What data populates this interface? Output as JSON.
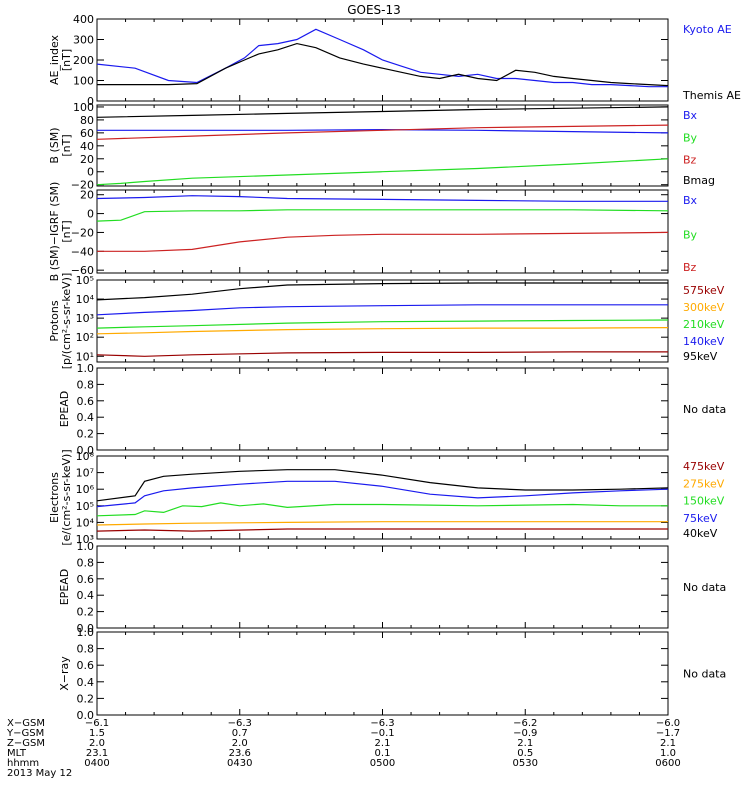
{
  "title": "GOES-13",
  "colors": {
    "black": "#000000",
    "blue": "#1a1aee",
    "green": "#22dd22",
    "red": "#cc2222",
    "orange": "#ffaa00",
    "maroon": "#990000"
  },
  "chart_data": [
    {
      "id": "ae",
      "type": "line",
      "ylabel": [
        "AE_index",
        "[nT]"
      ],
      "ylim": [
        0,
        400
      ],
      "yticks": [
        {
          "v": 0,
          "t": "0"
        },
        {
          "v": 100,
          "t": "100"
        },
        {
          "v": 200,
          "t": "200"
        },
        {
          "v": 300,
          "t": "300"
        },
        {
          "v": 400,
          "t": "400"
        }
      ],
      "series": [
        {
          "name": "Kyoto AE",
          "color": "#1a1aee",
          "labelY": 110,
          "x": [
            0,
            8,
            15,
            21,
            27,
            31,
            34,
            38,
            42,
            46,
            51,
            56,
            60,
            64,
            68,
            72,
            76,
            80,
            84,
            88,
            92,
            96,
            100,
            104,
            108,
            112,
            116,
            120
          ],
          "y": [
            180,
            160,
            100,
            90,
            160,
            210,
            270,
            280,
            300,
            350,
            300,
            250,
            200,
            170,
            140,
            130,
            120,
            130,
            110,
            110,
            100,
            90,
            90,
            80,
            80,
            75,
            70,
            70
          ]
        },
        {
          "name": "Themis AE",
          "color": "#000000",
          "labelY": 90,
          "x": [
            0,
            8,
            15,
            21,
            27,
            31,
            34,
            38,
            42,
            46,
            51,
            56,
            60,
            64,
            68,
            72,
            76,
            80,
            84,
            88,
            92,
            96,
            100,
            104,
            108,
            112,
            116,
            120
          ],
          "y": [
            80,
            80,
            80,
            85,
            160,
            200,
            230,
            250,
            280,
            260,
            210,
            180,
            160,
            140,
            120,
            110,
            130,
            110,
            100,
            150,
            140,
            120,
            110,
            100,
            90,
            85,
            80,
            75
          ]
        }
      ]
    },
    {
      "id": "bsm",
      "type": "line",
      "ylabel": [
        "B (SM)",
        "[nT]"
      ],
      "ylim": [
        -22,
        103
      ],
      "yticks": [
        {
          "v": -20,
          "t": "−20"
        },
        {
          "v": 0,
          "t": "0"
        },
        {
          "v": 20,
          "t": "20"
        },
        {
          "v": 40,
          "t": "40"
        },
        {
          "v": 60,
          "t": "60"
        },
        {
          "v": 80,
          "t": "80"
        },
        {
          "v": 100,
          "t": "100"
        }
      ],
      "series": [
        {
          "name": "Bx",
          "color": "#1a1aee",
          "labelY": 96,
          "x": [
            0,
            20,
            40,
            60,
            80,
            100,
            120
          ],
          "y": [
            64,
            64,
            64,
            65,
            64,
            62,
            60
          ]
        },
        {
          "name": "By",
          "color": "#22dd22",
          "labelY": 68,
          "x": [
            0,
            5,
            10,
            20,
            40,
            60,
            80,
            100,
            120
          ],
          "y": [
            -20,
            -18,
            -15,
            -10,
            -5,
            0,
            5,
            12,
            20
          ]
        },
        {
          "name": "Bz",
          "color": "#cc2222",
          "labelY": 40,
          "x": [
            0,
            20,
            40,
            60,
            80,
            100,
            120
          ],
          "y": [
            50,
            55,
            60,
            64,
            68,
            70,
            72
          ]
        },
        {
          "name": "Bmag",
          "color": "#000000",
          "labelY": 12,
          "x": [
            0,
            20,
            40,
            60,
            80,
            100,
            120
          ],
          "y": [
            84,
            87,
            90,
            93,
            96,
            98,
            100
          ]
        }
      ]
    },
    {
      "id": "bigrf",
      "type": "line",
      "ylabel": [
        "B (SM)−IGRF (SM)",
        "[nT]"
      ],
      "ylim": [
        -63,
        25
      ],
      "yticks": [
        {
          "v": -60,
          "t": "−60"
        },
        {
          "v": -40,
          "t": "−40"
        },
        {
          "v": -20,
          "t": "−20"
        },
        {
          "v": 0,
          "t": "0"
        },
        {
          "v": 20,
          "t": "20"
        }
      ],
      "series": [
        {
          "name": "Bx",
          "color": "#1a1aee",
          "labelY": 15,
          "x": [
            0,
            10,
            20,
            30,
            40,
            60,
            80,
            100,
            120
          ],
          "y": [
            16,
            17,
            19,
            18,
            16,
            15,
            14,
            13,
            13
          ]
        },
        {
          "name": "By",
          "color": "#22dd22",
          "labelY": -12,
          "x": [
            0,
            5,
            10,
            20,
            30,
            40,
            60,
            80,
            100,
            120
          ],
          "y": [
            -8,
            -7,
            2,
            3,
            3,
            4,
            4,
            4,
            4,
            3
          ]
        },
        {
          "name": "Bz",
          "color": "#cc2222",
          "labelY": -40,
          "x": [
            0,
            10,
            20,
            30,
            40,
            50,
            60,
            80,
            100,
            120
          ],
          "y": [
            -40,
            -40,
            -38,
            -30,
            -25,
            -23,
            -22,
            -22,
            -21,
            -20
          ]
        }
      ]
    },
    {
      "id": "protons",
      "type": "line",
      "log": true,
      "ylabel": [
        "Protons",
        "[p/(cm²-s-sr-keV)]"
      ],
      "ylim": [
        5,
        100000
      ],
      "yticks": [
        {
          "v": 10,
          "t": "10¹"
        },
        {
          "v": 100,
          "t": "10²"
        },
        {
          "v": 1000,
          "t": "10³"
        },
        {
          "v": 10000,
          "t": "10⁴"
        },
        {
          "v": 100000,
          "t": "10⁵"
        }
      ],
      "series": [
        {
          "name": "575keV",
          "color": "#990000",
          "labelY": 5,
          "x": [
            0,
            10,
            20,
            40,
            60,
            80,
            100,
            120
          ],
          "y": [
            12,
            10,
            12,
            15,
            16,
            16,
            17,
            17
          ]
        },
        {
          "name": "300keV",
          "color": "#ffaa00",
          "labelY": 4,
          "x": [
            0,
            10,
            20,
            40,
            60,
            80,
            100,
            120
          ],
          "y": [
            150,
            170,
            200,
            250,
            280,
            300,
            300,
            320
          ]
        },
        {
          "name": "210keV",
          "color": "#22dd22",
          "labelY": 3,
          "x": [
            0,
            10,
            20,
            40,
            60,
            80,
            100,
            120
          ],
          "y": [
            300,
            350,
            400,
            550,
            650,
            700,
            750,
            800
          ]
        },
        {
          "name": "140keV",
          "color": "#1a1aee",
          "labelY": 2,
          "x": [
            0,
            10,
            20,
            30,
            40,
            60,
            80,
            100,
            120
          ],
          "y": [
            1500,
            2000,
            2500,
            3500,
            4000,
            4500,
            5000,
            5000,
            5000
          ]
        },
        {
          "name": "95keV",
          "color": "#000000",
          "labelY": 1,
          "x": [
            0,
            10,
            20,
            30,
            40,
            60,
            80,
            100,
            120
          ],
          "y": [
            9000,
            12000,
            18000,
            35000,
            55000,
            65000,
            70000,
            70000,
            70000
          ]
        }
      ]
    },
    {
      "id": "epead1",
      "type": "line",
      "ylabel": [
        "EPEAD"
      ],
      "ylim": [
        0,
        1
      ],
      "nodata": "No data",
      "yticks": [
        {
          "v": 0,
          "t": "0.0"
        },
        {
          "v": 0.2,
          "t": "0.2"
        },
        {
          "v": 0.4,
          "t": "0.4"
        },
        {
          "v": 0.6,
          "t": "0.6"
        },
        {
          "v": 0.8,
          "t": "0.8"
        },
        {
          "v": 1,
          "t": "1.0"
        }
      ],
      "series": []
    },
    {
      "id": "electrons",
      "type": "line",
      "log": true,
      "ylabel": [
        "Electrons",
        "[e/(cm²-s-sr-keV)]"
      ],
      "ylim": [
        1000,
        100000000
      ],
      "yticks": [
        {
          "v": 1000,
          "t": "10³"
        },
        {
          "v": 10000,
          "t": "10⁴"
        },
        {
          "v": 100000,
          "t": "10⁵"
        },
        {
          "v": 1000000,
          "t": "10⁶"
        },
        {
          "v": 10000000,
          "t": "10⁷"
        },
        {
          "v": 100000000,
          "t": "10⁸"
        }
      ],
      "series": [
        {
          "name": "475keV",
          "color": "#990000",
          "labelY": 5,
          "x": [
            0,
            10,
            20,
            40,
            60,
            80,
            100,
            120
          ],
          "y": [
            3000,
            3500,
            3000,
            4000,
            4000,
            4000,
            4000,
            4000
          ]
        },
        {
          "name": "275keV",
          "color": "#ffaa00",
          "labelY": 4,
          "x": [
            0,
            10,
            20,
            40,
            60,
            80,
            100,
            120
          ],
          "y": [
            7000,
            8000,
            9000,
            10000,
            11000,
            11000,
            11000,
            11000
          ]
        },
        {
          "name": "150keV",
          "color": "#22dd22",
          "labelY": 3,
          "x": [
            0,
            8,
            10,
            14,
            18,
            22,
            26,
            30,
            35,
            40,
            50,
            60,
            70,
            80,
            90,
            100,
            110,
            120
          ],
          "y": [
            25000,
            30000,
            50000,
            40000,
            100000,
            90000,
            150000,
            100000,
            130000,
            80000,
            120000,
            120000,
            110000,
            100000,
            110000,
            120000,
            100000,
            100000
          ]
        },
        {
          "name": "75keV",
          "color": "#1a1aee",
          "labelY": 2,
          "x": [
            0,
            8,
            10,
            14,
            20,
            30,
            40,
            50,
            60,
            70,
            80,
            90,
            100,
            110,
            120
          ],
          "y": [
            90000,
            150000,
            400000,
            800000,
            1200000,
            2000000,
            3000000,
            3000000,
            1500000,
            500000,
            300000,
            400000,
            600000,
            800000,
            1000000
          ]
        },
        {
          "name": "40keV",
          "color": "#000000",
          "labelY": 1,
          "x": [
            0,
            8,
            10,
            14,
            20,
            30,
            40,
            50,
            60,
            70,
            80,
            90,
            100,
            110,
            120
          ],
          "y": [
            200000,
            400000,
            3000000,
            6000000,
            8000000,
            12000000,
            15000000,
            15000000,
            7000000,
            2500000,
            1200000,
            900000,
            900000,
            1000000,
            1200000
          ]
        }
      ]
    },
    {
      "id": "epead2",
      "type": "line",
      "ylabel": [
        "EPEAD"
      ],
      "ylim": [
        0,
        1
      ],
      "nodata": "No data",
      "yticks": [
        {
          "v": 0,
          "t": "0.0"
        },
        {
          "v": 0.2,
          "t": "0.2"
        },
        {
          "v": 0.4,
          "t": "0.4"
        },
        {
          "v": 0.6,
          "t": "0.6"
        },
        {
          "v": 0.8,
          "t": "0.8"
        },
        {
          "v": 1,
          "t": "1.0"
        }
      ],
      "series": []
    },
    {
      "id": "xray",
      "type": "line",
      "ylabel": [
        "X−ray"
      ],
      "ylim": [
        0,
        1
      ],
      "nodata": "No data",
      "yticks": [
        {
          "v": 0,
          "t": "0.0"
        },
        {
          "v": 0.2,
          "t": "0.2"
        },
        {
          "v": 0.4,
          "t": "0.4"
        },
        {
          "v": 0.6,
          "t": "0.6"
        },
        {
          "v": 0.8,
          "t": "0.8"
        },
        {
          "v": 1,
          "t": "1.0"
        }
      ],
      "series": []
    }
  ],
  "xaxis": {
    "xlim": [
      0,
      120
    ],
    "ticks": [
      0,
      30,
      60,
      90,
      120
    ],
    "rows": [
      {
        "label": "X−GSM",
        "values": [
          "−6.1",
          "−6.3",
          "−6.3",
          "−6.2",
          "−6.0"
        ]
      },
      {
        "label": "Y−GSM",
        "values": [
          "1.5",
          "0.7",
          "−0.1",
          "−0.9",
          "−1.7"
        ]
      },
      {
        "label": "Z−GSM",
        "values": [
          "2.0",
          "2.0",
          "2.1",
          "2.1",
          "2.1"
        ]
      },
      {
        "label": "MLT",
        "values": [
          "23.1",
          "23.6",
          "0.1",
          "0.5",
          "1.0"
        ]
      },
      {
        "label": "hhmm",
        "values": [
          "0400",
          "0430",
          "0500",
          "0530",
          "0600"
        ]
      }
    ],
    "date": "2013 May 12"
  }
}
